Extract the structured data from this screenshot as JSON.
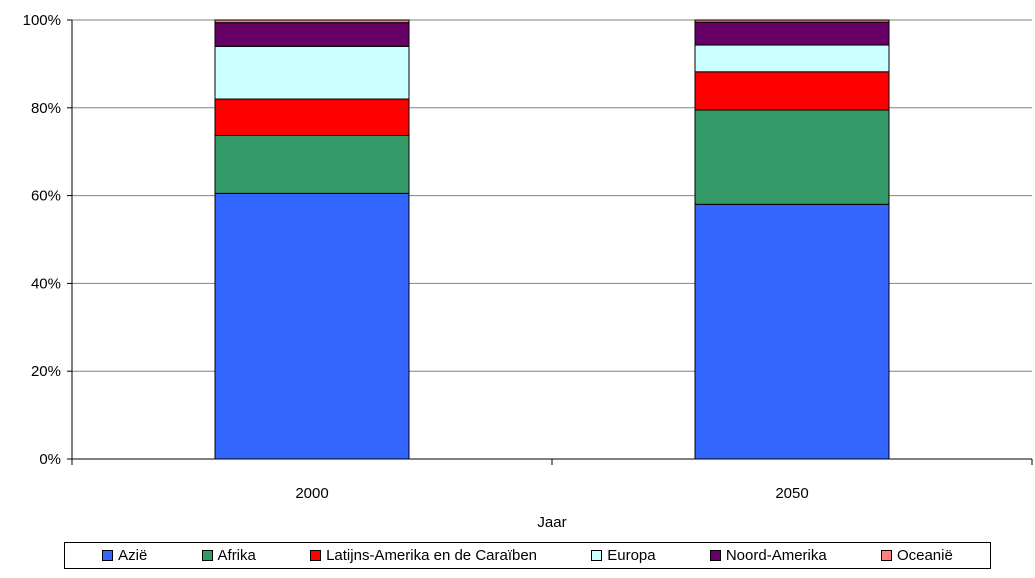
{
  "chart_data": {
    "type": "bar",
    "stacked": true,
    "percent": true,
    "xlabel": "Jaar",
    "ylabel": "",
    "categories": [
      "2000",
      "2050"
    ],
    "yticks": [
      "0%",
      "20%",
      "40%",
      "60%",
      "80%",
      "100%"
    ],
    "ylim": [
      0,
      100
    ],
    "grid": true,
    "legend_position": "bottom",
    "series": [
      {
        "name": "Azië",
        "color": "#3366ff",
        "values": [
          60.5,
          58.0
        ]
      },
      {
        "name": "Afrika",
        "color": "#339966",
        "values": [
          13.2,
          21.5
        ]
      },
      {
        "name": "Latijns-Amerika en de Caraïben",
        "color": "#ff0000",
        "values": [
          8.3,
          8.7
        ]
      },
      {
        "name": "Europa",
        "color": "#ccffff",
        "values": [
          12.0,
          6.1
        ]
      },
      {
        "name": "Noord-Amerika",
        "color": "#660066",
        "values": [
          5.4,
          5.2
        ]
      },
      {
        "name": "Oceanië",
        "color": "#ff8080",
        "values": [
          0.6,
          0.5
        ]
      }
    ]
  }
}
